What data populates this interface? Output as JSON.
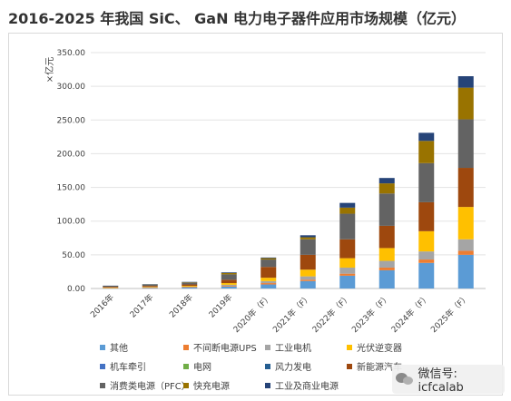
{
  "title": "2016-2025 年我国 SiC、 GaN 电力电子器件应用市场规模（亿元）",
  "watermark": "微信号: icfcalab",
  "chart_data": {
    "type": "stacked-bar",
    "ylabel": "×亿元",
    "ylim": [
      0,
      350
    ],
    "yticks": [
      "0.00",
      "50.00",
      "100.00",
      "150.00",
      "200.00",
      "250.00",
      "300.00",
      "350.00"
    ],
    "gridlines": true,
    "legend_position": "bottom",
    "categories": [
      "2016年",
      "2017年",
      "2018年",
      "2019年",
      "2020年（F）",
      "2021年（F）",
      "2022年（F）",
      "2023年（F）",
      "2024年（F）",
      "2025年（F）"
    ],
    "series": [
      {
        "name": "其他",
        "color": "#5b9bd5",
        "values": [
          0.5,
          0.8,
          1.5,
          3,
          6,
          11,
          19,
          27,
          38,
          50
        ]
      },
      {
        "name": "不间断电源UPS",
        "color": "#ed7d31",
        "values": [
          0.2,
          0.3,
          0.5,
          1,
          2,
          2,
          3,
          4,
          5,
          6
        ]
      },
      {
        "name": "工业电机",
        "color": "#a5a5a5",
        "values": [
          0.3,
          0.5,
          0.8,
          1.5,
          3,
          5,
          9,
          10,
          12,
          17
        ]
      },
      {
        "name": "光伏逆变器",
        "color": "#ffc000",
        "values": [
          0.5,
          0.8,
          1.2,
          2.5,
          5,
          10,
          14,
          19,
          30,
          48
        ]
      },
      {
        "name": "机车牵引",
        "color": "#4472c4",
        "values": [
          0,
          0,
          0,
          0,
          0,
          0,
          0,
          0,
          0,
          0
        ]
      },
      {
        "name": "电网",
        "color": "#70ad47",
        "values": [
          0,
          0,
          0,
          0,
          0,
          0,
          0,
          0,
          0,
          0
        ]
      },
      {
        "name": "风力发电",
        "color": "#255e91",
        "values": [
          0,
          0,
          0,
          0,
          0,
          0,
          0,
          0,
          0,
          0
        ]
      },
      {
        "name": "新能源汽车",
        "color": "#9e480e",
        "values": [
          1,
          1.5,
          2,
          5,
          16,
          22,
          28,
          33,
          43,
          58
        ]
      },
      {
        "name": "消费类电源（PFC）",
        "color": "#636363",
        "values": [
          1,
          1.5,
          2.5,
          8,
          11,
          23,
          38,
          48,
          58,
          72
        ]
      },
      {
        "name": "快充电源",
        "color": "#997300",
        "values": [
          0.5,
          0.6,
          0.8,
          2,
          2,
          3,
          9,
          15,
          33,
          47
        ]
      },
      {
        "name": "工业及商业电源",
        "color": "#264478",
        "values": [
          0.2,
          0.3,
          0.5,
          1,
          1,
          3,
          7,
          8,
          12,
          17
        ]
      }
    ]
  }
}
